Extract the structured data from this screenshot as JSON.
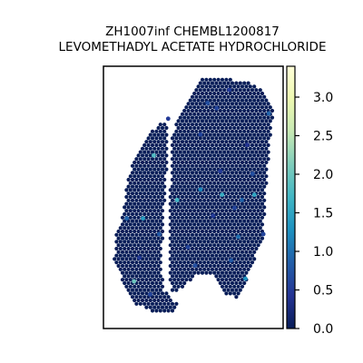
{
  "chart_data": {
    "type": "scatter",
    "title_lines": [
      "ZH1007inf CHEMBL1200817",
      "LEVOMETHADYL ACETATE HYDROCHLORIDE"
    ],
    "xlabel": "",
    "ylabel": "",
    "grid": false,
    "colormap": "YlGnBu",
    "colormap_stops": [
      "#081d58",
      "#253494",
      "#225ea8",
      "#1d91c0",
      "#41b6c4",
      "#7fcdbb",
      "#c7e9b4",
      "#edf8b1",
      "#ffffd9"
    ],
    "background_value": 0.0,
    "colorbar": {
      "range": [
        0.0,
        3.4
      ],
      "ticks": [
        0.0,
        0.5,
        1.0,
        1.5,
        2.0,
        2.5,
        3.0
      ],
      "tick_labels": [
        "0.0",
        "0.5",
        "1.0",
        "1.5",
        "2.0",
        "2.5",
        "3.0"
      ],
      "placement": "right"
    },
    "highlight_points": [
      {
        "x": 0.28,
        "y": 0.66,
        "value": 1.8
      },
      {
        "x": 0.41,
        "y": 0.49,
        "value": 1.7
      },
      {
        "x": 0.22,
        "y": 0.42,
        "value": 1.4
      },
      {
        "x": 0.17,
        "y": 0.18,
        "value": 2.0
      },
      {
        "x": 0.54,
        "y": 0.53,
        "value": 1.2
      },
      {
        "x": 0.66,
        "y": 0.51,
        "value": 1.6
      },
      {
        "x": 0.84,
        "y": 0.51,
        "value": 1.5
      },
      {
        "x": 0.77,
        "y": 0.49,
        "value": 0.9
      },
      {
        "x": 0.92,
        "y": 0.82,
        "value": 0.9
      },
      {
        "x": 0.73,
        "y": 0.46,
        "value": 0.6
      },
      {
        "x": 0.75,
        "y": 0.35,
        "value": 1.0
      },
      {
        "x": 0.71,
        "y": 0.26,
        "value": 0.8
      },
      {
        "x": 0.79,
        "y": 0.19,
        "value": 1.3
      },
      {
        "x": 0.51,
        "y": 0.24,
        "value": 0.7
      },
      {
        "x": 0.47,
        "y": 0.31,
        "value": 0.6
      },
      {
        "x": 0.31,
        "y": 0.36,
        "value": 0.8
      },
      {
        "x": 0.54,
        "y": 0.74,
        "value": 0.6
      },
      {
        "x": 0.63,
        "y": 0.84,
        "value": 0.6
      },
      {
        "x": 0.83,
        "y": 0.59,
        "value": 0.7
      },
      {
        "x": 0.61,
        "y": 0.43,
        "value": 0.5
      },
      {
        "x": 0.13,
        "y": 0.42,
        "value": 0.9
      },
      {
        "x": 0.58,
        "y": 0.86,
        "value": 0.7
      },
      {
        "x": 0.7,
        "y": 0.91,
        "value": 0.5
      },
      {
        "x": 0.26,
        "y": 0.13,
        "value": 0.6
      },
      {
        "x": 0.36,
        "y": 0.8,
        "value": 0.5
      },
      {
        "x": 0.89,
        "y": 0.36,
        "value": 0.6
      },
      {
        "x": 0.65,
        "y": 0.6,
        "value": 0.5
      },
      {
        "x": 0.2,
        "y": 0.27,
        "value": 0.5
      },
      {
        "x": 0.8,
        "y": 0.7,
        "value": 0.4
      }
    ]
  }
}
